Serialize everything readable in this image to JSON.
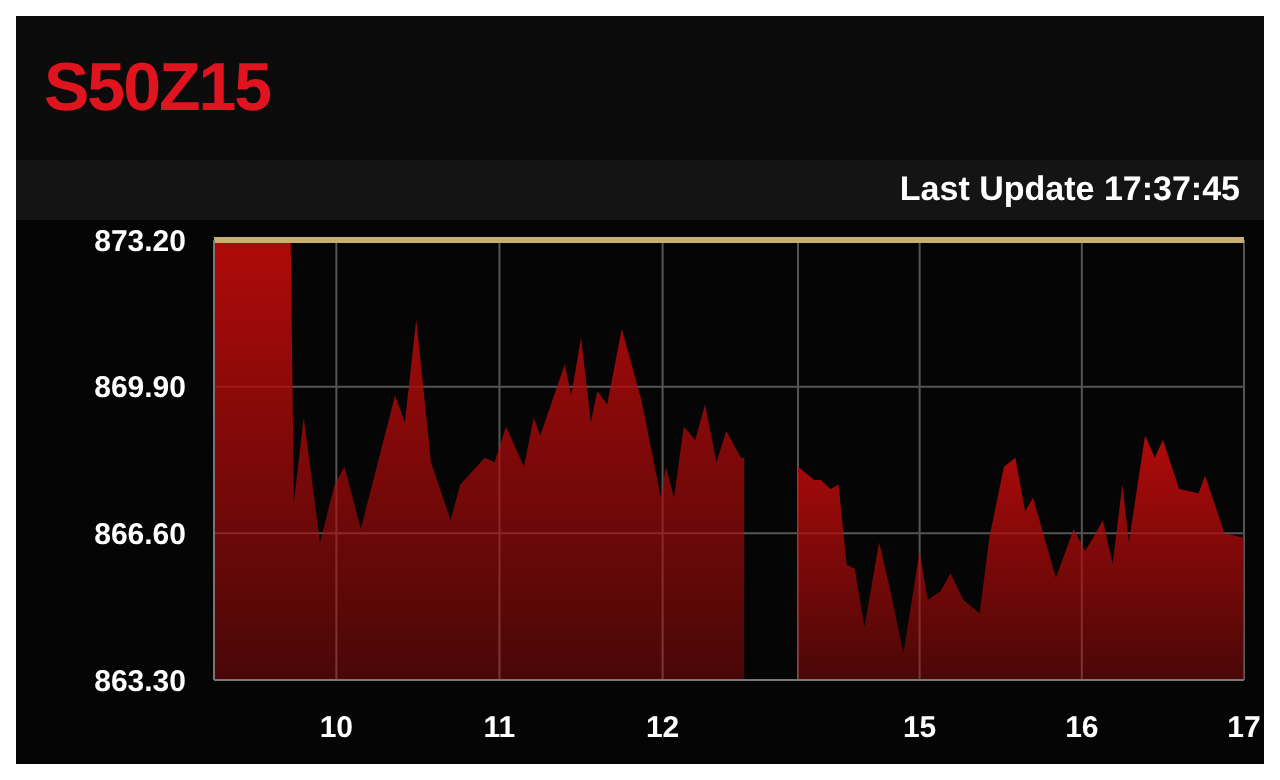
{
  "chart_data": [
    {
      "type": "area",
      "title": "S50Z15",
      "x": [
        9.25,
        9.72,
        9.74,
        9.8,
        9.9,
        9.99,
        10.05,
        10.15,
        10.36,
        10.42,
        10.49,
        10.58,
        10.7,
        10.76,
        10.91,
        10.97,
        11.04,
        11.15,
        11.21,
        11.25,
        11.4,
        11.44,
        11.5,
        11.56,
        11.6,
        11.66,
        11.75,
        11.87,
        11.99,
        12.02,
        12.07,
        12.13,
        12.2,
        12.26,
        12.33,
        12.39,
        12.48,
        12.5
      ],
      "series": [
        {
          "color": "#b00a0a",
          "values": [
            873.2,
            873.2,
            867.3,
            869.2,
            866.4,
            867.7,
            868.1,
            866.7,
            869.7,
            869.1,
            871.4,
            868.2,
            866.9,
            867.7,
            868.3,
            868.2,
            869.0,
            868.1,
            869.2,
            868.8,
            870.4,
            869.7,
            871.0,
            869.1,
            869.8,
            869.5,
            871.2,
            869.6,
            867.4,
            868.1,
            867.4,
            869.0,
            868.7,
            869.5,
            868.2,
            868.9,
            868.3,
            868.3
          ]
        }
      ],
      "xlim": [
        9.25,
        12.83
      ],
      "xticks": [
        10,
        11,
        12
      ],
      "ylim": [
        863.3,
        873.2
      ],
      "yticks": [
        {
          "value": 863.3,
          "label": "863.30"
        },
        {
          "value": 866.6,
          "label": "866.60"
        },
        {
          "value": 869.9,
          "label": "869.90"
        },
        {
          "value": 873.2,
          "label": "873.20"
        }
      ],
      "ref_lines": [
        {
          "axis": "y",
          "value": 873.2,
          "color": "#c8b070"
        }
      ],
      "grid": true
    },
    {
      "type": "area",
      "annotations": [
        "Last Update 17:37:45"
      ],
      "x": [
        14.25,
        14.35,
        14.39,
        14.45,
        14.5,
        14.55,
        14.6,
        14.66,
        14.75,
        14.82,
        14.9,
        15.0,
        15.05,
        15.13,
        15.19,
        15.27,
        15.37,
        15.43,
        15.52,
        15.59,
        15.65,
        15.7,
        15.84,
        15.95,
        16.02,
        16.07,
        16.13,
        16.19,
        16.25,
        16.29,
        16.39,
        16.45,
        16.5,
        16.6,
        16.72,
        16.76,
        16.88,
        17.0
      ],
      "series": [
        {
          "color": "#b00a0a",
          "values": [
            868.1,
            867.8,
            867.8,
            867.6,
            867.7,
            865.9,
            865.8,
            864.5,
            866.4,
            865.3,
            863.9,
            866.2,
            865.1,
            865.3,
            865.7,
            865.1,
            864.8,
            866.5,
            868.1,
            868.3,
            867.1,
            867.4,
            865.6,
            866.7,
            866.2,
            866.5,
            866.9,
            865.9,
            867.7,
            866.4,
            868.8,
            868.3,
            868.7,
            867.6,
            867.5,
            867.9,
            866.6,
            866.5
          ]
        }
      ],
      "xlim": [
        14.25,
        17
      ],
      "xticks": [
        15,
        16,
        17
      ],
      "ylim": [
        863.3,
        873.2
      ],
      "tick_labels": "x",
      "ref_lines": [
        {
          "axis": "y",
          "value": 873.2,
          "color": "#c8b070"
        }
      ],
      "grid": true
    }
  ]
}
